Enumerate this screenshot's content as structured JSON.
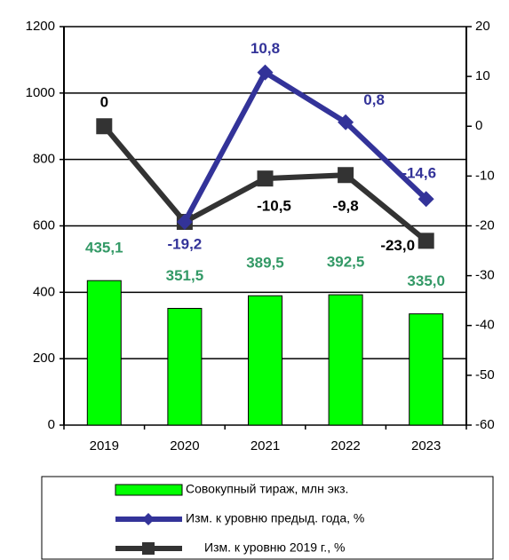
{
  "chart_data": {
    "type": "bar-line",
    "categories": [
      "2019",
      "2020",
      "2021",
      "2022",
      "2023"
    ],
    "ylim": [
      0,
      1200
    ],
    "yticks": [
      0,
      200,
      400,
      600,
      800,
      1000,
      1200
    ],
    "y2lim": [
      -60,
      20
    ],
    "y2ticks": [
      -60,
      -50,
      -40,
      -30,
      -20,
      -10,
      0,
      10,
      20
    ],
    "grid": true,
    "series": [
      {
        "name": "Совокупный тираж, млн экз.",
        "type": "bar",
        "color": "#00ff00",
        "label_color": "#339966",
        "values": [
          435.1,
          351.5,
          389.5,
          392.5,
          335.0
        ],
        "value_labels": [
          "435,1",
          "351,5",
          "389,5",
          "392,5",
          "335,0"
        ]
      },
      {
        "name": "Изм. к уровню предыд. года, %",
        "type": "line",
        "axis": "y2",
        "color": "#333399",
        "marker": "diamond",
        "values": [
          null,
          -19.2,
          10.8,
          0.8,
          -14.6
        ],
        "value_labels": [
          null,
          "-19,2",
          "10,8",
          "0,8",
          "-14,6"
        ]
      },
      {
        "name": "Изм. к уровню 2019 г., %",
        "type": "line",
        "axis": "y2",
        "color": "#333333",
        "marker": "square",
        "values": [
          0,
          -19.2,
          -10.5,
          -9.8,
          -23.0
        ],
        "value_labels": [
          "0",
          null,
          "-10,5",
          "-9,8",
          "-23,0"
        ]
      }
    ]
  }
}
